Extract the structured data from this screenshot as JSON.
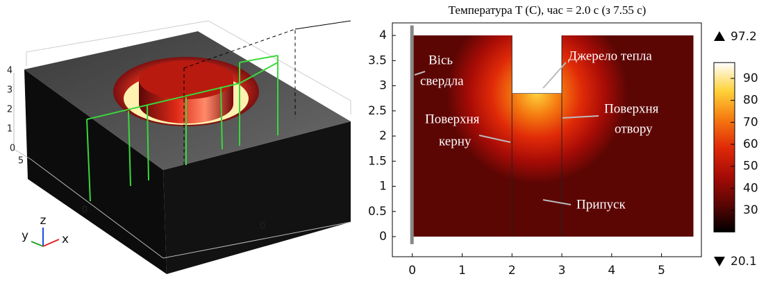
{
  "chart_data": {
    "type": "field",
    "title": "Температура T (C), час = 2.0 с (з 7.55 с)",
    "xlim": [
      -0.4,
      5.8
    ],
    "ylim": [
      -0.4,
      4.25
    ],
    "xticks": [
      0,
      1,
      2,
      3,
      4,
      5
    ],
    "yticks": [
      0,
      0.5,
      1,
      1.5,
      2,
      2.5,
      3,
      3.5,
      4
    ],
    "colormap": [
      "#000000",
      "#5c0604",
      "#a80c06",
      "#e02a08",
      "#f57a10",
      "#ffd23a",
      "#ffffff"
    ],
    "colorbar": {
      "range": [
        20.1,
        97.2
      ],
      "ticks": [
        30,
        40,
        50,
        60,
        70,
        80,
        90
      ]
    },
    "annotations": [
      {
        "lines": [
          "Вісь",
          "свердла"
        ]
      },
      {
        "lines": [
          "Джерело тепла"
        ]
      },
      {
        "lines": [
          "Поверхня",
          "отвору"
        ]
      },
      {
        "lines": [
          "Поверхня",
          "керну"
        ]
      },
      {
        "lines": [
          "Припуск"
        ]
      }
    ]
  },
  "view_3d": {
    "z_ticks": [
      4,
      3,
      2,
      1,
      0
    ],
    "y_ticks": [
      5,
      0
    ],
    "x_ticks": [
      0
    ],
    "axes": [
      "y",
      "z",
      "x"
    ]
  }
}
